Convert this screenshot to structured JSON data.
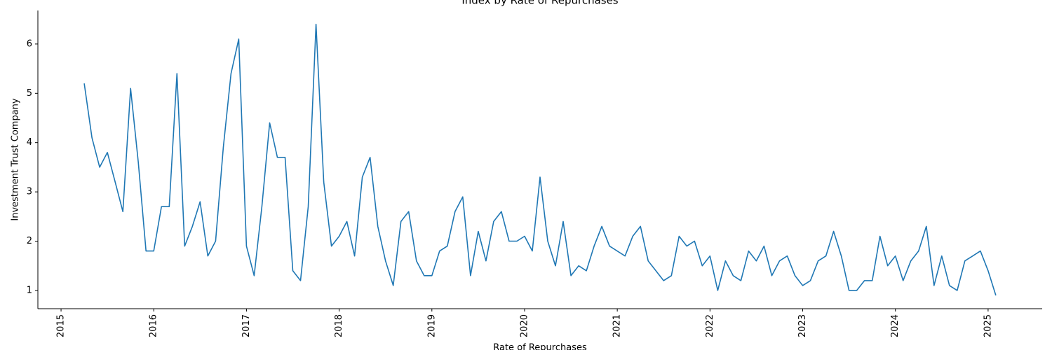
{
  "chart_data": {
    "type": "line",
    "title": "Index by Rate of Repurchases",
    "x_label": "Rate of Repurchases",
    "y_label": "Investment Trust Company",
    "x": [
      "2015-04",
      "2015-05",
      "2015-06",
      "2015-07",
      "2015-08",
      "2015-09",
      "2015-10",
      "2015-11",
      "2015-12",
      "2016-01",
      "2016-02",
      "2016-03",
      "2016-04",
      "2016-05",
      "2016-06",
      "2016-07",
      "2016-08",
      "2016-09",
      "2016-10",
      "2016-11",
      "2016-12",
      "2017-01",
      "2017-02",
      "2017-03",
      "2017-04",
      "2017-05",
      "2017-06",
      "2017-07",
      "2017-08",
      "2017-09",
      "2017-10",
      "2017-11",
      "2017-12",
      "2018-01",
      "2018-02",
      "2018-03",
      "2018-04",
      "2018-05",
      "2018-06",
      "2018-07",
      "2018-08",
      "2018-09",
      "2018-10",
      "2018-11",
      "2018-12",
      "2019-01",
      "2019-02",
      "2019-03",
      "2019-04",
      "2019-05",
      "2019-06",
      "2019-07",
      "2019-08",
      "2019-09",
      "2019-10",
      "2019-11",
      "2019-12",
      "2020-01",
      "2020-02",
      "2020-03",
      "2020-04",
      "2020-05",
      "2020-06",
      "2020-07",
      "2020-08",
      "2020-09",
      "2020-10",
      "2020-11",
      "2020-12",
      "2021-02",
      "2021-03",
      "2021-04",
      "2021-05",
      "2021-07",
      "2021-08",
      "2021-09",
      "2021-10",
      "2021-11",
      "2021-12",
      "2022-01",
      "2022-02",
      "2022-03",
      "2022-04",
      "2022-05",
      "2022-06",
      "2022-07",
      "2022-08",
      "2022-09",
      "2022-10",
      "2022-11",
      "2022-12",
      "2023-01",
      "2023-02",
      "2023-03",
      "2023-04",
      "2023-05",
      "2023-06",
      "2023-07",
      "2023-08",
      "2023-09",
      "2023-10",
      "2023-11",
      "2023-12",
      "2024-01",
      "2024-02",
      "2024-03",
      "2024-04",
      "2024-05",
      "2024-06",
      "2024-07",
      "2024-08",
      "2024-09",
      "2024-10",
      "2024-11",
      "2024-12",
      "2025-01",
      "2025-02"
    ],
    "series": [
      {
        "name": "Investment Trust Company",
        "color": "#1f77b4",
        "values": [
          5.2,
          4.1,
          3.5,
          3.8,
          3.2,
          2.6,
          5.1,
          3.6,
          1.8,
          1.8,
          2.7,
          2.7,
          5.4,
          1.9,
          2.3,
          2.8,
          1.7,
          2.0,
          3.9,
          5.4,
          6.1,
          1.9,
          1.3,
          2.7,
          4.4,
          3.7,
          3.7,
          1.4,
          1.2,
          2.7,
          6.4,
          3.2,
          1.9,
          2.1,
          2.4,
          1.7,
          3.3,
          3.7,
          2.3,
          1.6,
          1.1,
          2.4,
          2.6,
          1.6,
          1.3,
          1.3,
          1.8,
          1.9,
          2.6,
          2.9,
          1.3,
          2.2,
          1.6,
          2.4,
          2.6,
          2.0,
          2.0,
          2.1,
          1.8,
          3.3,
          2.0,
          1.5,
          2.4,
          1.3,
          1.5,
          1.4,
          1.9,
          2.3,
          1.9,
          1.7,
          2.1,
          2.3,
          1.6,
          1.2,
          1.3,
          2.1,
          1.9,
          2.0,
          1.5,
          1.7,
          1.0,
          1.6,
          1.3,
          1.2,
          1.8,
          1.6,
          1.9,
          1.3,
          1.6,
          1.7,
          1.3,
          1.1,
          1.2,
          1.6,
          1.7,
          2.2,
          1.7,
          1.0,
          1.0,
          1.2,
          1.2,
          2.1,
          1.5,
          1.7,
          1.2,
          1.6,
          1.8,
          2.3,
          1.1,
          1.7,
          1.1,
          1.0,
          1.6,
          1.7,
          1.8,
          1.4,
          0.9
        ]
      }
    ],
    "xlim": [
      "2014-10",
      "2025-08"
    ],
    "xticks": [
      {
        "value": "2015-01",
        "label": "2015"
      },
      {
        "value": "2016-01",
        "label": "2016"
      },
      {
        "value": "2017-01",
        "label": "2017"
      },
      {
        "value": "2018-01",
        "label": "2018"
      },
      {
        "value": "2019-01",
        "label": "2019"
      },
      {
        "value": "2020-01",
        "label": "2020"
      },
      {
        "value": "2021-01",
        "label": "2021"
      },
      {
        "value": "2022-01",
        "label": "2022"
      },
      {
        "value": "2023-01",
        "label": "2023"
      },
      {
        "value": "2024-01",
        "label": "2024"
      },
      {
        "value": "2025-01",
        "label": "2025"
      }
    ],
    "ylim": [
      0.63,
      6.68
    ],
    "yticks": [
      1,
      2,
      3,
      4,
      5,
      6
    ],
    "grid": false
  }
}
